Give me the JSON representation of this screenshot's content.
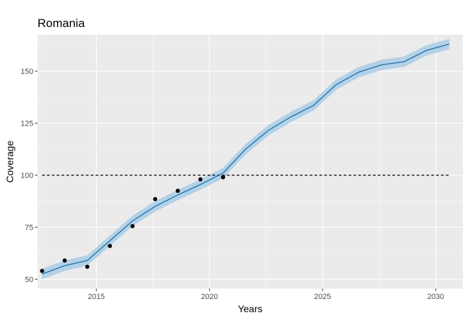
{
  "chart_data": {
    "type": "line",
    "title": "Romania",
    "xlabel": "Years",
    "ylabel": "Coverage",
    "xlim": [
      2012.4,
      2031.2
    ],
    "ylim": [
      45.5,
      167.5
    ],
    "xticks": [
      2015,
      2020,
      2025,
      2030
    ],
    "yticks": [
      50,
      75,
      100,
      125,
      150
    ],
    "grid": true,
    "legend": "none",
    "reference_line": {
      "y": 100,
      "x_from": 2012.6,
      "x_to": 2030.6
    },
    "fit": {
      "x": [
        2012.6,
        2013.6,
        2014.6,
        2015.6,
        2016.6,
        2017.6,
        2018.6,
        2019.6,
        2020.6,
        2021.6,
        2022.6,
        2023.6,
        2024.6,
        2025.6,
        2026.6,
        2027.6,
        2028.6,
        2029.6,
        2030.6
      ],
      "y": [
        52.5,
        56.5,
        59,
        68.5,
        78,
        85,
        90.5,
        95.5,
        101,
        112.5,
        121.5,
        128,
        133.5,
        143.5,
        149.5,
        153,
        154.5,
        160,
        163
      ],
      "lower": [
        50,
        54,
        56.5,
        66,
        75.5,
        82.5,
        88,
        93,
        98.5,
        110,
        119,
        125.5,
        131,
        141,
        147,
        150.5,
        152,
        157.5,
        160.5
      ],
      "upper": [
        55,
        59,
        61.5,
        71,
        80.5,
        87.5,
        93,
        98,
        103.5,
        115,
        124,
        130.5,
        136,
        146,
        152,
        155.5,
        157,
        162.5,
        165.5
      ]
    },
    "observed": {
      "x": [
        2012.6,
        2013.6,
        2014.6,
        2015.6,
        2016.6,
        2017.6,
        2018.6,
        2019.6,
        2020.6
      ],
      "y": [
        54,
        59,
        56,
        66,
        75.5,
        88.5,
        92.5,
        98,
        99
      ]
    },
    "colors": {
      "panel": "#ebebeb",
      "grid_major": "#ffffff",
      "line": "#1a6fa8",
      "ribbon": "#a9cde6",
      "points": "#000000",
      "reference": "#000000"
    }
  }
}
